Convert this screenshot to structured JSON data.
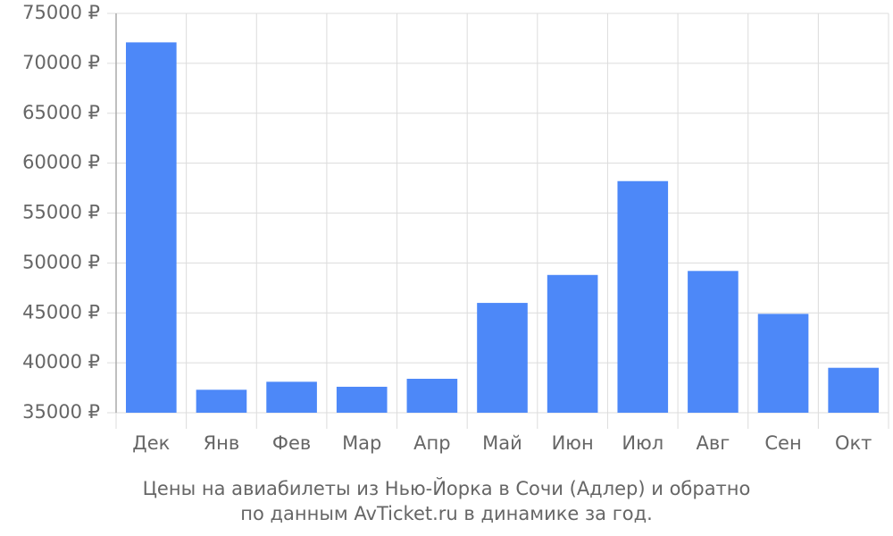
{
  "chart_data": {
    "type": "bar",
    "title": "Цены на авиабилеты из Нью-Йорка в Сочи (Адлер) и обратно",
    "subtitle": "по данным AvTicket.ru в динамике за год.",
    "categories": [
      "Дек",
      "Янв",
      "Фев",
      "Мар",
      "Апр",
      "Май",
      "Июн",
      "Июл",
      "Авг",
      "Сен",
      "Окт"
    ],
    "values": [
      72100,
      37300,
      38100,
      37600,
      38400,
      46000,
      48800,
      58200,
      49200,
      44900,
      39500
    ],
    "color": "#4d88f8",
    "ylim": [
      35000,
      75000
    ],
    "yticks": [
      {
        "value": 35000,
        "label": "35000 ₽"
      },
      {
        "value": 40000,
        "label": "40000 ₽"
      },
      {
        "value": 45000,
        "label": "45000 ₽"
      },
      {
        "value": 50000,
        "label": "50000 ₽"
      },
      {
        "value": 55000,
        "label": "55000 ₽"
      },
      {
        "value": 60000,
        "label": "60000 ₽"
      },
      {
        "value": 65000,
        "label": "65000 ₽"
      },
      {
        "value": 70000,
        "label": "70000 ₽"
      },
      {
        "value": 75000,
        "label": "75000 ₽"
      }
    ],
    "grid": true
  }
}
